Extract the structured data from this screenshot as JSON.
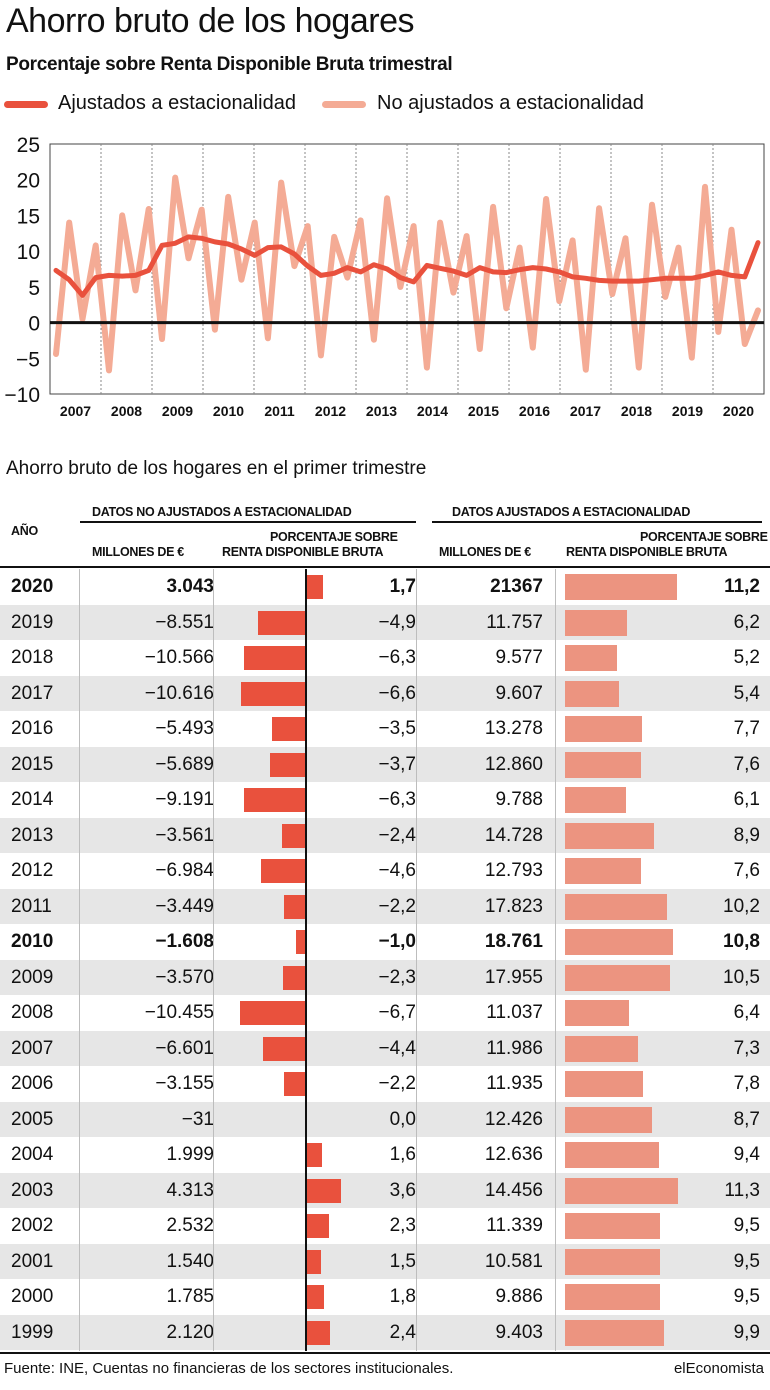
{
  "header": {
    "title": "Ahorro bruto de los hogares",
    "subtitle": "Porcentaje sobre Renta Disponible Bruta trimestral"
  },
  "legend": {
    "adjusted": "Ajustados a estacionalidad",
    "unadjusted": "No ajustados a estacionalidad"
  },
  "colors": {
    "adjusted": "#e9513d",
    "unadjusted": "#f4ab95",
    "bar_unadjusted": "#e9513d",
    "bar_adjusted": "#ec9480",
    "row_alt": "#e6e6e6"
  },
  "chart_data": [
    {
      "type": "line",
      "title": "Ahorro bruto de los hogares",
      "subtitle": "Porcentaje sobre Renta Disponible Bruta trimestral",
      "ylim": [
        -10,
        25
      ],
      "yticks": [
        "25",
        "20",
        "15",
        "10",
        "5",
        "0",
        "−10"
      ],
      "ytick_values": [
        25,
        20,
        15,
        10,
        5,
        0,
        -10
      ],
      "extra_ytick": "−5",
      "xlabels": [
        "2007",
        "2008",
        "2009",
        "2010",
        "2011",
        "2012",
        "2013",
        "2014",
        "2015",
        "2016",
        "2017",
        "2018",
        "2019",
        "2020"
      ],
      "grid": "vertical dashed",
      "series": [
        {
          "name": "Ajustados a estacionalidad",
          "values": [
            7.3,
            6.0,
            3.8,
            6.3,
            6.6,
            6.5,
            6.6,
            7.3,
            10.8,
            11.1,
            12.0,
            11.8,
            11.3,
            11.0,
            10.3,
            9.4,
            10.5,
            10.6,
            9.6,
            7.9,
            6.6,
            6.9,
            7.7,
            7.1,
            8.1,
            7.5,
            6.3,
            5.7,
            8.0,
            7.6,
            7.2,
            6.6,
            7.7,
            7.1,
            7.0,
            7.4,
            7.7,
            7.5,
            7.1,
            6.4,
            6.2,
            5.9,
            5.8,
            5.8,
            5.8,
            6.0,
            6.2,
            6.2,
            6.2,
            6.6,
            7.1,
            6.6,
            6.4,
            11.2
          ]
        },
        {
          "name": "No ajustados a estacionalidad",
          "values": [
            -4.4,
            14.0,
            0.5,
            10.8,
            -6.7,
            15.0,
            4.5,
            15.9,
            -2.3,
            20.3,
            9.0,
            15.8,
            -1.0,
            17.6,
            6.0,
            14.0,
            -2.2,
            19.6,
            7.9,
            13.5,
            -4.6,
            12.0,
            6.3,
            14.3,
            -2.4,
            17.4,
            5.0,
            13.5,
            -6.3,
            14.0,
            4.2,
            12.1,
            -3.7,
            16.2,
            2.0,
            10.5,
            -3.5,
            17.3,
            3.0,
            11.5,
            -6.6,
            16.0,
            4.0,
            11.8,
            -6.3,
            16.5,
            3.6,
            10.5,
            -4.9,
            19.0,
            -1.3,
            13.0,
            -3.0,
            1.7
          ]
        }
      ]
    },
    {
      "type": "table",
      "title": "Ahorro bruto de los hogares en el primer trimestre",
      "columns": [
        "AÑO",
        "MILLONES DE €",
        "PORCENTAJE SOBRE RENTA DISPONIBLE BRUTA",
        "MILLONES DE €",
        "PORCENTAJE SOBRE RENTA DISPONIBLE BRUTA"
      ],
      "groups": [
        "DATOS NO AJUSTADOS A ESTACIONALIDAD",
        "DATOS AJUSTADOS A ESTACIONALIDAD"
      ],
      "rows": [
        {
          "year": "2020",
          "nsa_m": "3.043",
          "nsa_p": "1,7",
          "nsa_v": 1.7,
          "sa_m": "21367",
          "sa_p": "11,2",
          "sa_v": 11.2,
          "bold": true
        },
        {
          "year": "2019",
          "nsa_m": "−8.551",
          "nsa_p": "−4,9",
          "nsa_v": -4.9,
          "sa_m": "11.757",
          "sa_p": "6,2",
          "sa_v": 6.2
        },
        {
          "year": "2018",
          "nsa_m": "−10.566",
          "nsa_p": "−6,3",
          "nsa_v": -6.3,
          "sa_m": "9.577",
          "sa_p": "5,2",
          "sa_v": 5.2
        },
        {
          "year": "2017",
          "nsa_m": "−10.616",
          "nsa_p": "−6,6",
          "nsa_v": -6.6,
          "sa_m": "9.607",
          "sa_p": "5,4",
          "sa_v": 5.4
        },
        {
          "year": "2016",
          "nsa_m": "−5.493",
          "nsa_p": "−3,5",
          "nsa_v": -3.5,
          "sa_m": "13.278",
          "sa_p": "7,7",
          "sa_v": 7.7
        },
        {
          "year": "2015",
          "nsa_m": "−5.689",
          "nsa_p": "−3,7",
          "nsa_v": -3.7,
          "sa_m": "12.860",
          "sa_p": "7,6",
          "sa_v": 7.6
        },
        {
          "year": "2014",
          "nsa_m": "−9.191",
          "nsa_p": "−6,3",
          "nsa_v": -6.3,
          "sa_m": "9.788",
          "sa_p": "6,1",
          "sa_v": 6.1
        },
        {
          "year": "2013",
          "nsa_m": "−3.561",
          "nsa_p": "−2,4",
          "nsa_v": -2.4,
          "sa_m": "14.728",
          "sa_p": "8,9",
          "sa_v": 8.9
        },
        {
          "year": "2012",
          "nsa_m": "−6.984",
          "nsa_p": "−4,6",
          "nsa_v": -4.6,
          "sa_m": "12.793",
          "sa_p": "7,6",
          "sa_v": 7.6
        },
        {
          "year": "2011",
          "nsa_m": "−3.449",
          "nsa_p": "−2,2",
          "nsa_v": -2.2,
          "sa_m": "17.823",
          "sa_p": "10,2",
          "sa_v": 10.2
        },
        {
          "year": "2010",
          "nsa_m": "−1.608",
          "nsa_p": "−1,0",
          "nsa_v": -1.0,
          "sa_m": "18.761",
          "sa_p": "10,8",
          "sa_v": 10.8,
          "bold": true
        },
        {
          "year": "2009",
          "nsa_m": "−3.570",
          "nsa_p": "−2,3",
          "nsa_v": -2.3,
          "sa_m": "17.955",
          "sa_p": "10,5",
          "sa_v": 10.5
        },
        {
          "year": "2008",
          "nsa_m": "−10.455",
          "nsa_p": "−6,7",
          "nsa_v": -6.7,
          "sa_m": "11.037",
          "sa_p": "6,4",
          "sa_v": 6.4
        },
        {
          "year": "2007",
          "nsa_m": "−6.601",
          "nsa_p": "−4,4",
          "nsa_v": -4.4,
          "sa_m": "11.986",
          "sa_p": "7,3",
          "sa_v": 7.3
        },
        {
          "year": "2006",
          "nsa_m": "−3.155",
          "nsa_p": "−2,2",
          "nsa_v": -2.2,
          "sa_m": "11.935",
          "sa_p": "7,8",
          "sa_v": 7.8
        },
        {
          "year": "2005",
          "nsa_m": "−31",
          "nsa_p": "0,0",
          "nsa_v": 0.0,
          "sa_m": "12.426",
          "sa_p": "8,7",
          "sa_v": 8.7
        },
        {
          "year": "2004",
          "nsa_m": "1.999",
          "nsa_p": "1,6",
          "nsa_v": 1.6,
          "sa_m": "12.636",
          "sa_p": "9,4",
          "sa_v": 9.4
        },
        {
          "year": "2003",
          "nsa_m": "4.313",
          "nsa_p": "3,6",
          "nsa_v": 3.6,
          "sa_m": "14.456",
          "sa_p": "11,3",
          "sa_v": 11.3
        },
        {
          "year": "2002",
          "nsa_m": "2.532",
          "nsa_p": "2,3",
          "nsa_v": 2.3,
          "sa_m": "11.339",
          "sa_p": "9,5",
          "sa_v": 9.5
        },
        {
          "year": "2001",
          "nsa_m": "1.540",
          "nsa_p": "1,5",
          "nsa_v": 1.5,
          "sa_m": "10.581",
          "sa_p": "9,5",
          "sa_v": 9.5
        },
        {
          "year": "2000",
          "nsa_m": "1.785",
          "nsa_p": "1,8",
          "nsa_v": 1.8,
          "sa_m": "9.886",
          "sa_p": "9,5",
          "sa_v": 9.5
        },
        {
          "year": "1999",
          "nsa_m": "2.120",
          "nsa_p": "2,4",
          "nsa_v": 2.4,
          "sa_m": "9.403",
          "sa_p": "9,9",
          "sa_v": 9.9
        }
      ]
    }
  ],
  "table_header": {
    "section_title": "Ahorro bruto de los hogares en el primer trimestre",
    "col_year": "AÑO",
    "group_nsa": "DATOS NO AJUSTADOS A ESTACIONALIDAD",
    "group_sa": "DATOS AJUSTADOS A ESTACIONALIDAD",
    "millones": "MILLONES DE €",
    "pct_line1": "PORCENTAJE SOBRE",
    "pct_line2": "RENTA DISPONIBLE BRUTA"
  },
  "footer": {
    "source": "Fuente: INE, Cuentas no financieras de los sectores institucionales.",
    "brand": "elEconomista"
  }
}
